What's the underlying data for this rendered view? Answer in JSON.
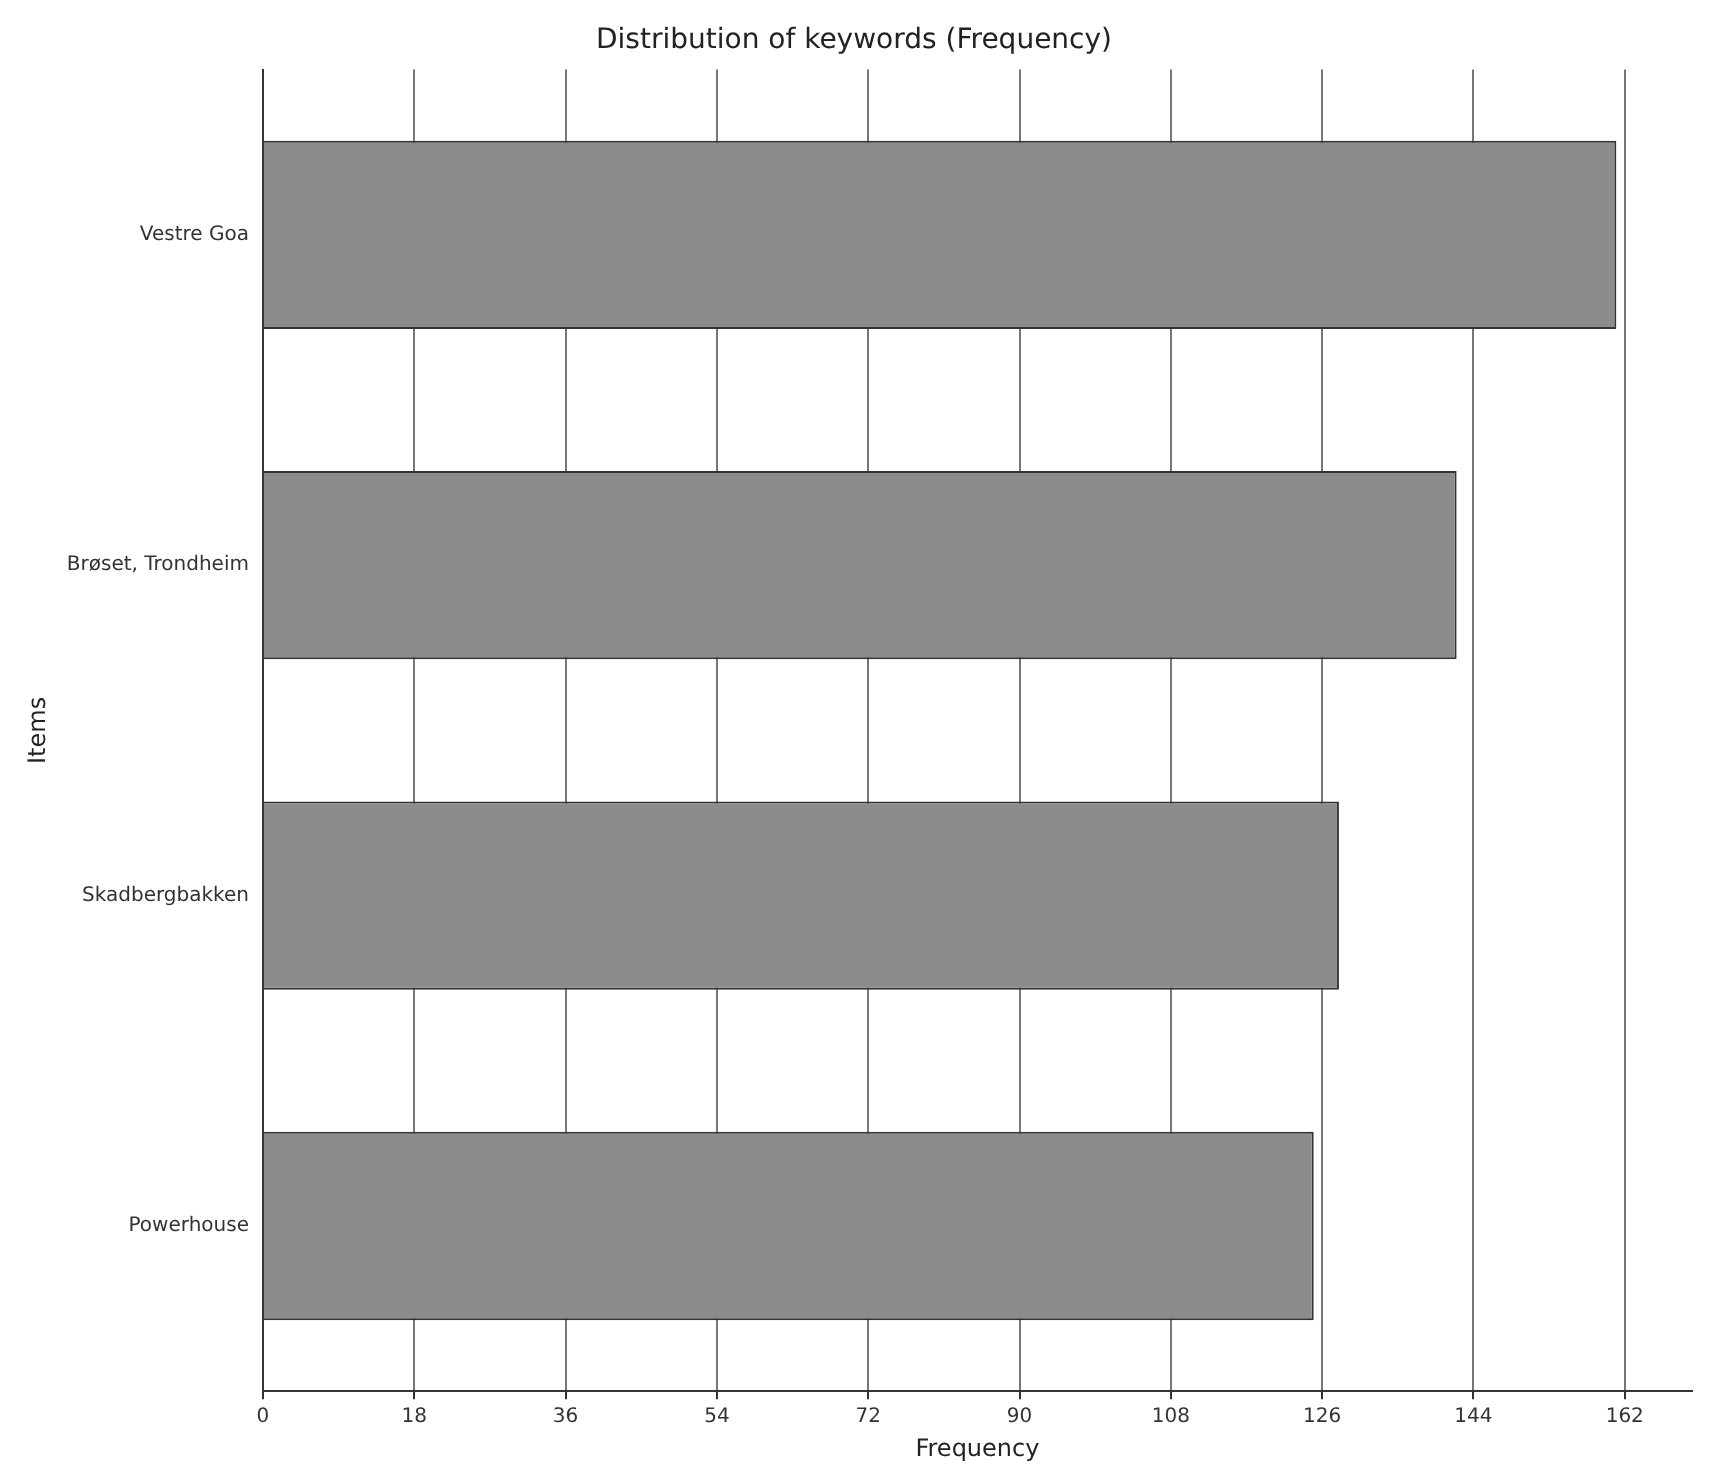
{
  "chart_data": {
    "type": "bar",
    "orientation": "horizontal",
    "title": "Distribution of keywords (Frequency)",
    "xlabel": "Frequency",
    "ylabel": "Items",
    "categories": [
      "Vestre Goa",
      "Brøset, Trondheim",
      "Skadbergbakken",
      "Powerhouse"
    ],
    "values": [
      161,
      142,
      128,
      125
    ],
    "color": "#8c8c8c",
    "xlim": [
      0,
      170
    ],
    "xticks": [
      0,
      18,
      36,
      54,
      72,
      90,
      108,
      126,
      144,
      162
    ],
    "grid": "x",
    "legend": false
  }
}
